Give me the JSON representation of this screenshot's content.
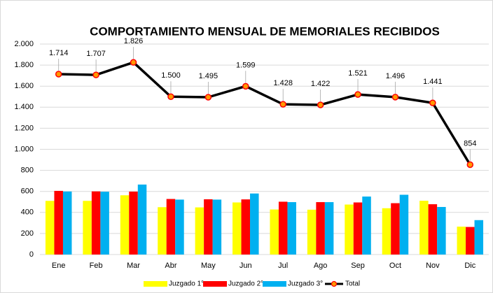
{
  "chart_data": {
    "type": "bar",
    "title": "COMPORTAMIENTO MENSUAL DE MEMORIALES RECIBIDOS",
    "categories": [
      "Ene",
      "Feb",
      "Mar",
      "Abr",
      "May",
      "Jun",
      "Jul",
      "Ago",
      "Sep",
      "Oct",
      "Nov",
      "Dic"
    ],
    "series": [
      {
        "name": "Juzgado 1°",
        "type": "bar",
        "color": "#ffff00",
        "values": [
          510,
          510,
          563,
          450,
          448,
          495,
          428,
          426,
          475,
          440,
          511,
          265
        ]
      },
      {
        "name": "Juzgado 2°",
        "type": "bar",
        "color": "#ff0000",
        "values": [
          605,
          600,
          598,
          528,
          525,
          524,
          502,
          498,
          495,
          488,
          478,
          262
        ]
      },
      {
        "name": "Juzgado 3°",
        "type": "bar",
        "color": "#00b0f0",
        "values": [
          599,
          597,
          665,
          522,
          522,
          580,
          498,
          498,
          551,
          568,
          452,
          327
        ]
      },
      {
        "name": "Total",
        "type": "line",
        "color": "#000000",
        "values": [
          1714,
          1707,
          1826,
          1500,
          1495,
          1599,
          1428,
          1422,
          1521,
          1496,
          1441,
          854
        ],
        "value_labels": [
          "1.714",
          "1.707",
          "1.826",
          "1.500",
          "1.495",
          "1.599",
          "1.428",
          "1.422",
          "1.521",
          "1.496",
          "1.441",
          "854"
        ]
      }
    ],
    "ylim": [
      0,
      2000
    ],
    "yticks": [
      0,
      200,
      400,
      600,
      800,
      {
        "value": 1000,
        "label": "1.000"
      },
      {
        "value": 1200,
        "label": "1.200"
      },
      {
        "value": 1400,
        "label": "1.400"
      },
      {
        "value": 1600,
        "label": "1.600"
      },
      {
        "value": 1800,
        "label": "1.800"
      },
      {
        "value": 2000,
        "label": "2.000"
      }
    ],
    "grid": true,
    "legend": "bottom"
  }
}
